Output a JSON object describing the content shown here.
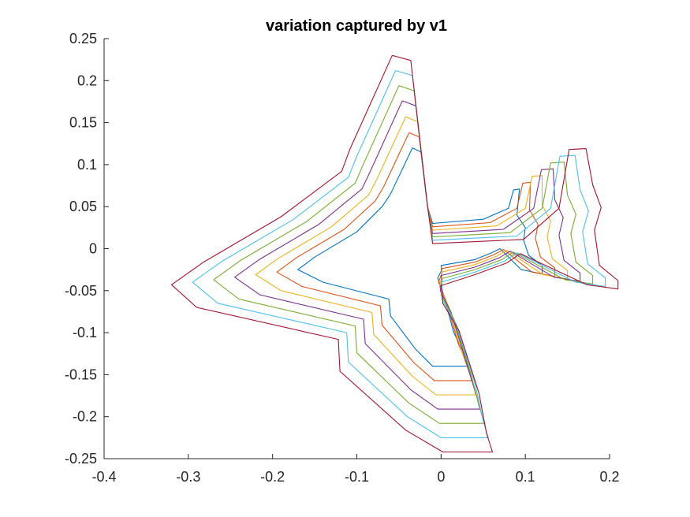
{
  "chart_data": {
    "type": "line",
    "title": "variation captured by v1",
    "xlabel": "",
    "ylabel": "",
    "xlim": [
      -0.4,
      0.2
    ],
    "ylim": [
      -0.25,
      0.25
    ],
    "xticks": [
      -0.4,
      -0.3,
      -0.2,
      -0.1,
      0,
      0.1,
      0.2
    ],
    "xtick_labels": [
      "-0.4",
      "-0.3",
      "-0.2",
      "-0.1",
      "0",
      "0.1",
      "0.2"
    ],
    "yticks": [
      0.25,
      0.2,
      0.15,
      0.1,
      0.05,
      0,
      -0.05,
      -0.1,
      -0.15,
      -0.2,
      -0.25
    ],
    "ytick_labels": [
      "0.25",
      "0.2",
      "0.15",
      "0.1",
      "0.05",
      "0",
      "-0.05",
      "-0.1",
      "-0.15",
      "-0.2",
      "-0.25"
    ],
    "grid": false,
    "legend": "none",
    "axis_color": "#262626",
    "series": [
      {
        "color": "#0072BD",
        "x": [
          -0.034,
          -0.024,
          -0.016,
          -0.01,
          0.05,
          0.08,
          0.086,
          0.093,
          0.09,
          0.1,
          0.098,
          0.104,
          0.12,
          0.12,
          0.095,
          0.07,
          0.06,
          0.04,
          0.0,
          0.001,
          -0.004,
          0.003,
          0.015,
          0.03,
          0.031,
          -0.01,
          -0.03,
          -0.06,
          -0.062,
          -0.14,
          -0.17,
          -0.15,
          -0.1,
          -0.07,
          -0.06,
          -0.034
        ],
        "y": [
          0.12,
          0.115,
          0.05,
          0.03,
          0.035,
          0.048,
          0.07,
          0.071,
          0.04,
          0.025,
          0.01,
          -0.008,
          -0.02,
          -0.03,
          -0.025,
          0.0,
          -0.005,
          -0.013,
          -0.02,
          -0.025,
          -0.035,
          -0.055,
          -0.1,
          -0.13,
          -0.14,
          -0.14,
          -0.12,
          -0.08,
          -0.06,
          -0.04,
          -0.025,
          -0.01,
          0.02,
          0.05,
          0.065,
          0.12
        ]
      },
      {
        "color": "#D95319",
        "x": [
          -0.038,
          -0.026,
          -0.016,
          -0.01,
          0.058,
          0.09,
          0.097,
          0.106,
          0.105,
          0.115,
          0.112,
          0.118,
          0.135,
          0.135,
          0.108,
          0.074,
          0.063,
          0.04,
          0.0,
          0.001,
          -0.003,
          0.006,
          0.02,
          0.034,
          0.036,
          -0.008,
          -0.032,
          -0.07,
          -0.072,
          -0.165,
          -0.195,
          -0.172,
          -0.115,
          -0.078,
          -0.068,
          -0.038
        ],
        "y": [
          0.138,
          0.133,
          0.05,
          0.026,
          0.031,
          0.048,
          0.078,
          0.079,
          0.046,
          0.029,
          0.012,
          -0.01,
          -0.023,
          -0.033,
          -0.028,
          -0.001,
          -0.007,
          -0.016,
          -0.024,
          -0.029,
          -0.04,
          -0.062,
          -0.112,
          -0.145,
          -0.157,
          -0.157,
          -0.136,
          -0.091,
          -0.068,
          -0.045,
          -0.028,
          -0.011,
          0.023,
          0.057,
          0.074,
          0.138
        ]
      },
      {
        "color": "#EDB120",
        "x": [
          -0.042,
          -0.028,
          -0.016,
          -0.01,
          0.066,
          0.1,
          0.108,
          0.12,
          0.12,
          0.13,
          0.126,
          0.132,
          0.15,
          0.15,
          0.121,
          0.078,
          0.066,
          0.04,
          0.0,
          0.001,
          -0.002,
          0.009,
          0.025,
          0.038,
          0.041,
          -0.006,
          -0.034,
          -0.08,
          -0.082,
          -0.19,
          -0.22,
          -0.194,
          -0.13,
          -0.086,
          -0.076,
          -0.042
        ],
        "y": [
          0.157,
          0.151,
          0.05,
          0.022,
          0.027,
          0.048,
          0.086,
          0.087,
          0.052,
          0.033,
          0.014,
          -0.012,
          -0.026,
          -0.036,
          -0.031,
          -0.002,
          -0.009,
          -0.019,
          -0.028,
          -0.033,
          -0.045,
          -0.069,
          -0.124,
          -0.16,
          -0.174,
          -0.174,
          -0.152,
          -0.102,
          -0.076,
          -0.05,
          -0.031,
          -0.012,
          0.026,
          0.064,
          0.083,
          0.157
        ]
      },
      {
        "color": "#7E2F8E",
        "x": [
          -0.046,
          -0.03,
          -0.016,
          -0.01,
          0.074,
          0.11,
          0.119,
          0.133,
          0.135,
          0.145,
          0.14,
          0.146,
          0.165,
          0.165,
          0.134,
          0.082,
          0.069,
          0.04,
          0.0,
          0.001,
          -0.001,
          0.012,
          0.03,
          0.042,
          0.046,
          -0.004,
          -0.036,
          -0.09,
          -0.092,
          -0.215,
          -0.245,
          -0.216,
          -0.145,
          -0.094,
          -0.084,
          -0.046
        ],
        "y": [
          0.176,
          0.17,
          0.05,
          0.018,
          0.023,
          0.048,
          0.094,
          0.095,
          0.058,
          0.037,
          0.016,
          -0.014,
          -0.029,
          -0.039,
          -0.034,
          -0.003,
          -0.011,
          -0.022,
          -0.032,
          -0.037,
          -0.05,
          -0.076,
          -0.136,
          -0.175,
          -0.191,
          -0.191,
          -0.168,
          -0.113,
          -0.084,
          -0.055,
          -0.034,
          -0.013,
          0.029,
          0.071,
          0.092,
          0.176
        ]
      },
      {
        "color": "#77AC30",
        "x": [
          -0.05,
          -0.032,
          -0.016,
          -0.01,
          0.082,
          0.12,
          0.13,
          0.146,
          0.15,
          0.16,
          0.154,
          0.16,
          0.18,
          0.18,
          0.147,
          0.086,
          0.072,
          0.04,
          0.0,
          0.001,
          0.0,
          0.015,
          0.035,
          0.046,
          0.051,
          -0.002,
          -0.038,
          -0.1,
          -0.102,
          -0.24,
          -0.27,
          -0.238,
          -0.16,
          -0.102,
          -0.092,
          -0.05
        ],
        "y": [
          0.194,
          0.188,
          0.05,
          0.014,
          0.019,
          0.048,
          0.102,
          0.103,
          0.064,
          0.041,
          0.018,
          -0.016,
          -0.032,
          -0.042,
          -0.037,
          -0.004,
          -0.013,
          -0.025,
          -0.036,
          -0.041,
          -0.055,
          -0.083,
          -0.148,
          -0.19,
          -0.208,
          -0.208,
          -0.184,
          -0.124,
          -0.092,
          -0.06,
          -0.037,
          -0.014,
          0.032,
          0.078,
          0.101,
          0.194
        ]
      },
      {
        "color": "#4DBEEE",
        "x": [
          -0.054,
          -0.034,
          -0.016,
          -0.01,
          0.09,
          0.13,
          0.141,
          0.159,
          0.165,
          0.175,
          0.168,
          0.174,
          0.195,
          0.195,
          0.16,
          0.09,
          0.075,
          0.04,
          0.0,
          0.001,
          0.001,
          0.018,
          0.04,
          0.05,
          0.056,
          0.0,
          -0.04,
          -0.11,
          -0.112,
          -0.265,
          -0.295,
          -0.26,
          -0.175,
          -0.11,
          -0.1,
          -0.054
        ],
        "y": [
          0.212,
          0.206,
          0.05,
          0.01,
          0.015,
          0.048,
          0.11,
          0.111,
          0.07,
          0.045,
          0.02,
          -0.018,
          -0.035,
          -0.045,
          -0.04,
          -0.005,
          -0.015,
          -0.028,
          -0.04,
          -0.045,
          -0.06,
          -0.09,
          -0.16,
          -0.205,
          -0.225,
          -0.225,
          -0.2,
          -0.135,
          -0.1,
          -0.065,
          -0.04,
          -0.015,
          0.035,
          0.085,
          0.11,
          0.212
        ]
      },
      {
        "color": "#A2142F",
        "x": [
          -0.058,
          -0.036,
          -0.016,
          -0.01,
          0.098,
          0.14,
          0.152,
          0.172,
          0.18,
          0.19,
          0.182,
          0.188,
          0.21,
          0.21,
          0.173,
          0.094,
          0.078,
          0.04,
          0.0,
          0.001,
          0.002,
          0.021,
          0.045,
          0.054,
          0.061,
          0.002,
          -0.042,
          -0.12,
          -0.122,
          -0.29,
          -0.32,
          -0.282,
          -0.19,
          -0.118,
          -0.108,
          -0.058
        ],
        "y": [
          0.23,
          0.224,
          0.05,
          0.006,
          0.011,
          0.048,
          0.118,
          0.119,
          0.076,
          0.049,
          0.022,
          -0.02,
          -0.038,
          -0.048,
          -0.043,
          -0.006,
          -0.017,
          -0.031,
          -0.044,
          -0.049,
          -0.065,
          -0.097,
          -0.172,
          -0.22,
          -0.242,
          -0.242,
          -0.216,
          -0.146,
          -0.108,
          -0.07,
          -0.043,
          -0.016,
          0.038,
          0.092,
          0.119,
          0.23
        ]
      }
    ]
  }
}
